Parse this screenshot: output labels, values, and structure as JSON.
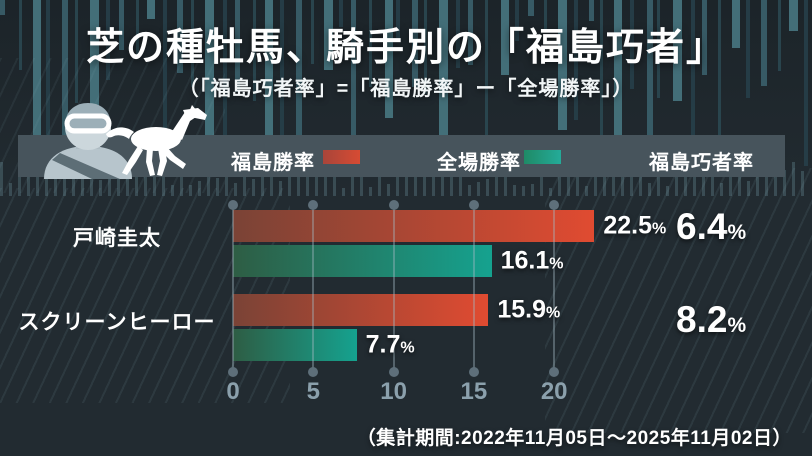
{
  "header": {
    "title": "芝の種牡馬、騎手別の「福島巧者」",
    "subtitle": "（「福島巧者率」=「福島勝率」ー「全場勝率」）"
  },
  "legend": {
    "fukushima_win_rate_label": "福島勝率",
    "all_tracks_win_rate_label": "全場勝率",
    "specialist_rate_label": "福島巧者率"
  },
  "icons": {
    "jockey": "jockey-icon",
    "horse": "horse-icon"
  },
  "colors": {
    "background": "#222b31",
    "band": "#47545c",
    "fukushima_bar_start": "#7a4336",
    "fukushima_bar_end": "#e04b31",
    "all_tracks_bar_start": "#2e5d44",
    "all_tracks_bar_end": "#15a28f",
    "axis_text": "#8ba0ac"
  },
  "chart_data": {
    "type": "bar",
    "orientation": "horizontal",
    "title": "芝の種牡馬、騎手別の「福島巧者」",
    "categories": [
      "戸崎圭太",
      "スクリーンヒーロー"
    ],
    "series": [
      {
        "name": "福島勝率",
        "values": [
          22.5,
          15.9
        ]
      },
      {
        "name": "全場勝率",
        "values": [
          16.1,
          7.7
        ]
      }
    ],
    "specialist_rate": {
      "label": "福島巧者率",
      "values": [
        6.4,
        8.2
      ]
    },
    "value_suffix": "%",
    "x_ticks": [
      0,
      5,
      10,
      15,
      20
    ],
    "xlim": [
      0,
      22.5
    ],
    "grid": true,
    "legend_position": "top"
  },
  "footer": {
    "note": "（集計期間:2022年11月05日～2025年11月02日）"
  }
}
